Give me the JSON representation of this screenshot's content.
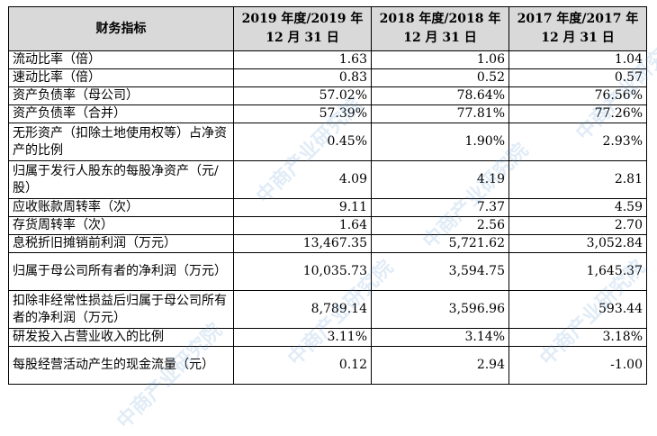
{
  "table": {
    "header": {
      "label": "财务指标",
      "col2_line1": "2019 年度/2019 年",
      "col2_line2": "12 月 31 日",
      "col3_line1": "2018 年度/2018 年",
      "col3_line2": "12 月 31 日",
      "col4_line1": "2017 年度/2017 年",
      "col4_line2": "12 月 31 日"
    },
    "rows": [
      {
        "label": "流动比率（倍）",
        "y2019": "1.63",
        "y2018": "1.06",
        "y2017": "1.04"
      },
      {
        "label": "速动比率（倍）",
        "y2019": "0.83",
        "y2018": "0.52",
        "y2017": "0.57"
      },
      {
        "label": "资产负债率（母公司）",
        "y2019": "57.02%",
        "y2018": "78.64%",
        "y2017": "76.56%"
      },
      {
        "label": "资产负债率（合并）",
        "y2019": "57.39%",
        "y2018": "77.81%",
        "y2017": "77.26%"
      },
      {
        "label": "无形资产（扣除土地使用权等）占净资产的比例",
        "y2019": "0.45%",
        "y2018": "1.90%",
        "y2017": "2.93%"
      },
      {
        "label": "归属于发行人股东的每股净资产（元/股）",
        "y2019": "4.09",
        "y2018": "4.19",
        "y2017": "2.81"
      },
      {
        "label": "应收账款周转率（次）",
        "y2019": "9.11",
        "y2018": "7.37",
        "y2017": "4.59"
      },
      {
        "label": "存货周转率（次）",
        "y2019": "1.64",
        "y2018": "2.56",
        "y2017": "2.70"
      },
      {
        "label": "息税折旧摊销前利润（万元）",
        "y2019": "13,467.35",
        "y2018": "5,721.62",
        "y2017": "3,052.84"
      },
      {
        "label": "归属于母公司所有者的净利润（万元）",
        "y2019": "10,035.73",
        "y2018": "3,594.75",
        "y2017": "1,645.37"
      },
      {
        "label": "扣除非经常性损益后归属于母公司所有者的净利润（万元）",
        "y2019": "8,789.14",
        "y2018": "3,596.96",
        "y2017": "593.44"
      },
      {
        "label": "研发投入占营业收入的比例",
        "y2019": "3.11%",
        "y2018": "3.14%",
        "y2017": "3.18%"
      },
      {
        "label": "每股经营活动产生的现金流量（元）",
        "y2019": "0.12",
        "y2018": "2.94",
        "y2017": "-1.00"
      }
    ]
  },
  "watermark": {
    "text": "中商产业研究院",
    "color": "#5a96d2"
  }
}
